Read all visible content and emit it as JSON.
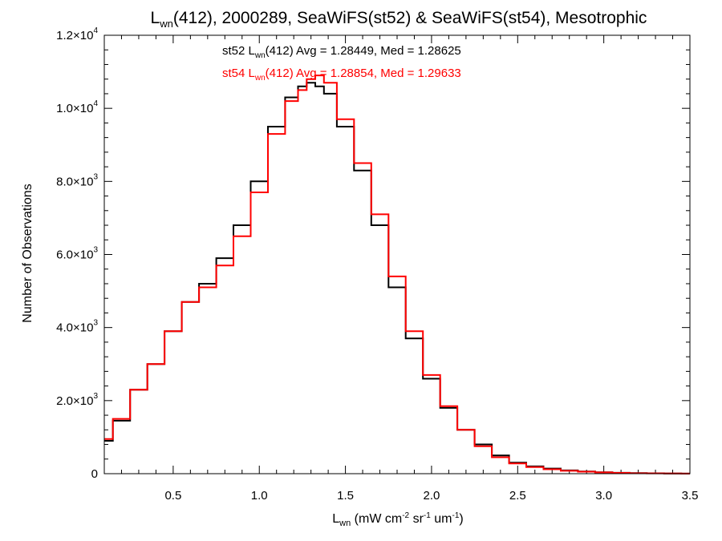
{
  "chart_data": {
    "type": "line",
    "style": "step-histogram",
    "title": {
      "prefix": "L",
      "sub": "wn",
      "rest": "(412), 2000289, SeaWiFS(st52) & SeaWiFS(st54), Mesotrophic"
    },
    "xlabel": {
      "prefix": "L",
      "sub": "wn",
      "rest": " (mW cm",
      "sup1": "-2",
      "rest2": " sr",
      "sup2": "-1",
      "rest3": " um",
      "sup3": "-1",
      "rest4": ")"
    },
    "ylabel": "Number of Observations",
    "xlim": [
      0.1,
      3.5
    ],
    "ylim": [
      0,
      12000
    ],
    "grid": false,
    "x_ticks": [
      {
        "value": 0.5,
        "label": "0.5"
      },
      {
        "value": 1.0,
        "label": "1.0"
      },
      {
        "value": 1.5,
        "label": "1.5"
      },
      {
        "value": 2.0,
        "label": "2.0"
      },
      {
        "value": 2.5,
        "label": "2.5"
      },
      {
        "value": 3.0,
        "label": "3.0"
      },
      {
        "value": 3.5,
        "label": "3.5"
      }
    ],
    "y_ticks": [
      {
        "value": 0,
        "mantissa": "0",
        "exp": ""
      },
      {
        "value": 2000,
        "mantissa": "2.0×10",
        "exp": "3"
      },
      {
        "value": 4000,
        "mantissa": "4.0×10",
        "exp": "3"
      },
      {
        "value": 6000,
        "mantissa": "6.0×10",
        "exp": "3"
      },
      {
        "value": 8000,
        "mantissa": "8.0×10",
        "exp": "3"
      },
      {
        "value": 10000,
        "mantissa": "1.0×10",
        "exp": "4"
      },
      {
        "value": 12000,
        "mantissa": "1.2×10",
        "exp": "4"
      }
    ],
    "annotations": [
      {
        "series": "st52",
        "color": "#000000",
        "pre": "st52 L",
        "sub": "wn",
        "post": "(412) Avg = 1.28449, Med = 1.28625"
      },
      {
        "series": "st54",
        "color": "#ff0000",
        "pre": "st54 L",
        "sub": "wn",
        "post": "(412) Avg = 1.28854, Med = 1.29633"
      }
    ],
    "series": [
      {
        "name": "st52",
        "color": "#000000",
        "x": [
          0.1,
          0.2,
          0.3,
          0.4,
          0.5,
          0.6,
          0.7,
          0.8,
          0.9,
          1.0,
          1.1,
          1.2,
          1.25,
          1.3,
          1.35,
          1.4,
          1.5,
          1.6,
          1.7,
          1.8,
          1.9,
          2.0,
          2.1,
          2.2,
          2.3,
          2.4,
          2.5,
          2.6,
          2.7,
          2.8,
          2.9,
          3.0,
          3.1,
          3.2,
          3.3,
          3.4,
          3.5
        ],
        "y": [
          900,
          1450,
          2300,
          3000,
          3900,
          4700,
          5200,
          5900,
          6800,
          8000,
          9500,
          10300,
          10600,
          10700,
          10600,
          10400,
          9500,
          8300,
          6800,
          5100,
          3700,
          2600,
          1800,
          1200,
          800,
          500,
          300,
          200,
          140,
          90,
          60,
          40,
          25,
          15,
          10,
          5,
          2
        ]
      },
      {
        "name": "st54",
        "color": "#ff0000",
        "x": [
          0.1,
          0.2,
          0.3,
          0.4,
          0.5,
          0.6,
          0.7,
          0.8,
          0.9,
          1.0,
          1.1,
          1.2,
          1.25,
          1.3,
          1.35,
          1.4,
          1.5,
          1.6,
          1.7,
          1.8,
          1.9,
          2.0,
          2.1,
          2.2,
          2.3,
          2.4,
          2.5,
          2.6,
          2.7,
          2.8,
          2.9,
          3.0,
          3.1,
          3.2,
          3.3,
          3.4,
          3.5
        ],
        "y": [
          950,
          1500,
          2300,
          3000,
          3900,
          4700,
          5100,
          5700,
          6500,
          7700,
          9300,
          10200,
          10500,
          10800,
          10900,
          10700,
          9700,
          8500,
          7100,
          5400,
          3900,
          2700,
          1850,
          1200,
          750,
          450,
          280,
          180,
          120,
          80,
          55,
          35,
          22,
          12,
          8,
          4,
          2
        ]
      }
    ]
  }
}
